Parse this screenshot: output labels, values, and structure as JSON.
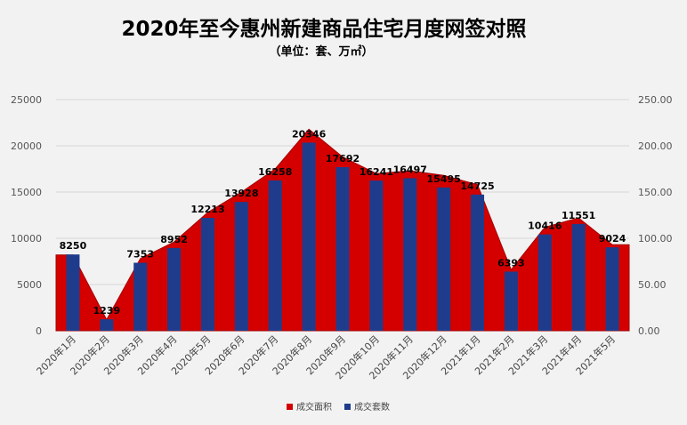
{
  "chart_data": {
    "type": "bar",
    "title": "2020年至今惠州新建商品住宅月度网签对照",
    "subtitle": "（单位：套、万㎡）",
    "categories": [
      "2020年1月",
      "2020年2月",
      "2020年3月",
      "2020年4月",
      "2020年5月",
      "2020年6月",
      "2020年7月",
      "2020年8月",
      "2020年9月",
      "2020年10月",
      "2020年11月",
      "2020年12月",
      "2021年1月",
      "2021年2月",
      "2021年3月",
      "2021年4月",
      "2021年5月"
    ],
    "series": [
      {
        "name": "成交面积",
        "type": "area",
        "axis": "right",
        "color": "#d40000",
        "values": [
          82,
          12,
          78,
          96,
          128,
          150,
          175,
          218,
          188,
          170,
          173,
          168,
          158,
          66,
          112,
          122,
          93
        ]
      },
      {
        "name": "成交套数",
        "type": "bar",
        "axis": "left",
        "color": "#1f3c8c",
        "values": [
          8250,
          1239,
          7353,
          8952,
          12213,
          13928,
          16258,
          20346,
          17692,
          16241,
          16497,
          15495,
          14725,
          6393,
          10416,
          11551,
          9024
        ]
      }
    ],
    "data_labels": [
      "8250",
      "1239",
      "7353",
      "8952",
      "12213",
      "13928",
      "16258",
      "20346",
      "17692",
      "16241",
      "16497",
      "15495",
      "14725",
      "6393",
      "10416",
      "11551",
      "9024"
    ],
    "y_left": {
      "ylim": [
        0,
        25000
      ],
      "ticks": [
        "0",
        "5000",
        "10000",
        "15000",
        "20000",
        "25000"
      ]
    },
    "y_right": {
      "ylim": [
        0,
        250
      ],
      "ticks": [
        "0.00",
        "50.00",
        "100.00",
        "150.00",
        "200.00",
        "250.00"
      ]
    },
    "grid": true,
    "legend_position": "bottom-center",
    "legend": [
      {
        "label": "成交面积",
        "color": "#d40000"
      },
      {
        "label": "成交套数",
        "color": "#1f3c8c"
      }
    ]
  }
}
